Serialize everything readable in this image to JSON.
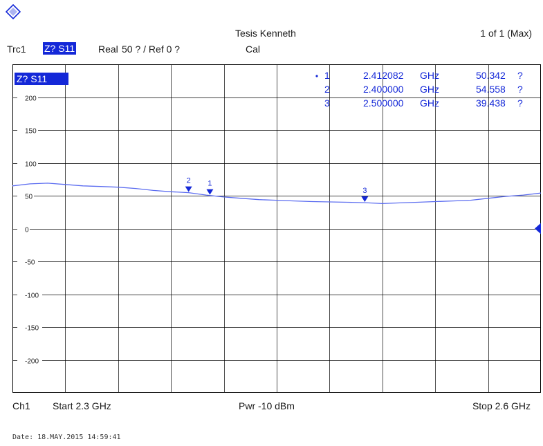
{
  "header": {
    "trace_label": "Trc1",
    "trace_param": "Z? S11",
    "trace_format": "Real",
    "scale_info": "50 ? / Ref 0 ?",
    "cal_label": "Cal",
    "title": "Tesis Kenneth",
    "page_info": "1 of 1 (Max)"
  },
  "footer": {
    "channel": "Ch1",
    "start_label": "Start 2.3 GHz",
    "power_label": "Pwr -10 dBm",
    "stop_label": "Stop 2.6 GHz"
  },
  "date_stamp": "Date: 18.MAY.2015  14:59:41",
  "colors": {
    "trace": "#5b6cf0",
    "marker": "#1428d8",
    "grid": "#000000",
    "ref_line": "#1428d8"
  },
  "chart_data": {
    "type": "line",
    "title": "Tesis Kenneth",
    "trace_tag": "Z? S11",
    "xlabel": "",
    "ylabel": "",
    "xlim": [
      2.3,
      2.6
    ],
    "ylim": [
      -250,
      250
    ],
    "grid": true,
    "yticks": [
      200,
      150,
      100,
      50,
      0,
      -50,
      -100,
      -150,
      -200
    ],
    "ytick_labels": [
      "200",
      "150",
      "100",
      "50",
      "0",
      "-50",
      "-100",
      "-150",
      "-200"
    ],
    "reference_level": 0,
    "series": [
      {
        "x": [
          2.3,
          2.31,
          2.32,
          2.33,
          2.34,
          2.35,
          2.36,
          2.37,
          2.38,
          2.39,
          2.4,
          2.41,
          2.42,
          2.43,
          2.44,
          2.45,
          2.46,
          2.47,
          2.48,
          2.49,
          2.5,
          2.51,
          2.52,
          2.53,
          2.54,
          2.55,
          2.56,
          2.57,
          2.58,
          2.59,
          2.6
        ],
        "values": [
          65,
          68,
          69,
          67,
          65,
          64,
          63,
          61,
          58,
          56,
          54.6,
          51,
          48,
          46,
          44,
          43,
          42,
          41,
          40.5,
          40,
          39.4,
          38,
          39,
          40,
          41,
          42,
          43,
          46,
          49,
          51,
          54
        ]
      }
    ],
    "markers": [
      {
        "label": "1",
        "active": true,
        "x": 2.412082,
        "freq": "2.412082",
        "unit": "GHz",
        "value": "50.342",
        "value_unit": "?",
        "y": 50.342
      },
      {
        "label": "2",
        "active": false,
        "x": 2.4,
        "freq": "2.400000",
        "unit": "GHz",
        "value": "54.558",
        "value_unit": "?",
        "y": 54.558
      },
      {
        "label": "3",
        "active": false,
        "x": 2.5,
        "freq": "2.500000",
        "unit": "GHz",
        "value": "39.438",
        "value_unit": "?",
        "y": 39.438
      }
    ]
  }
}
